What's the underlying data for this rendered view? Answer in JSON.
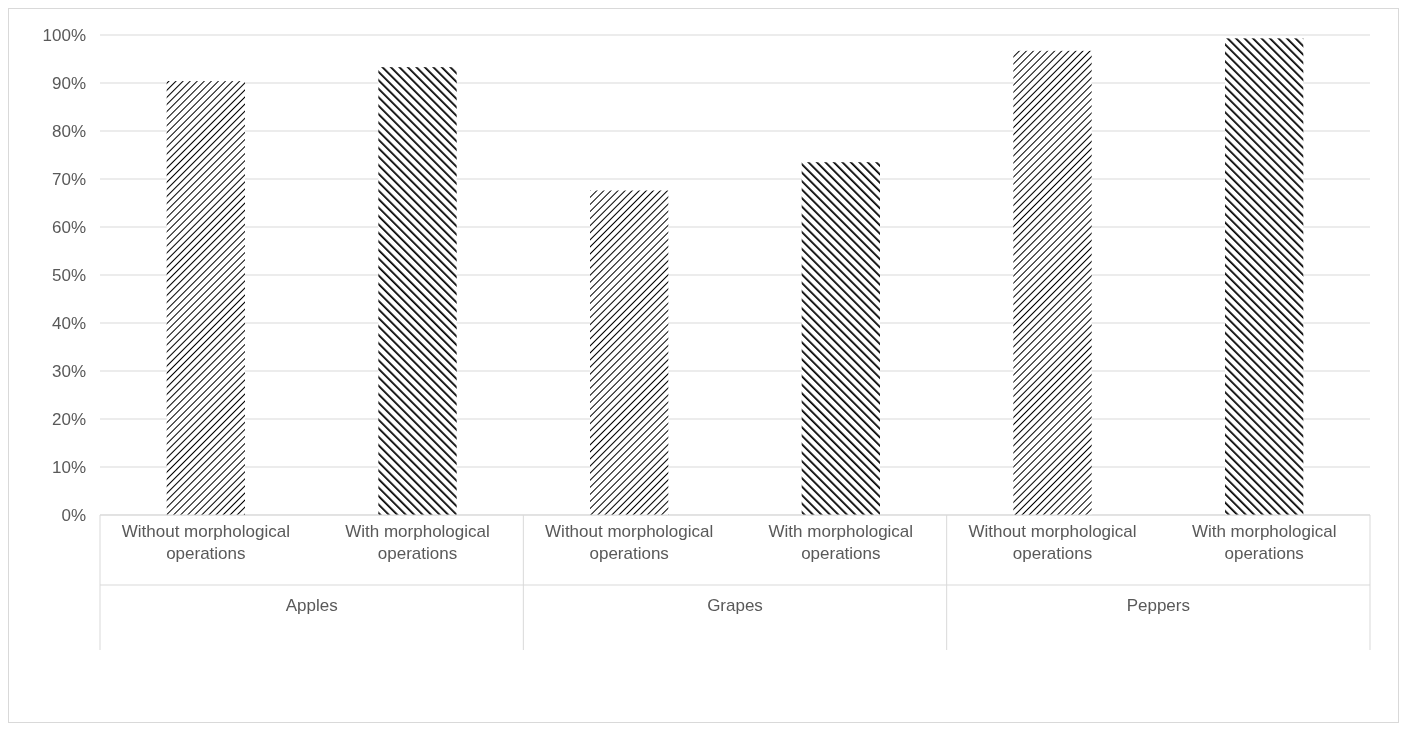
{
  "chart_data": {
    "type": "bar",
    "categories": [
      "Apples",
      "Grapes",
      "Peppers"
    ],
    "series": [
      {
        "name": "Without morphological operations",
        "color": "#000000",
        "values": [
          90.4,
          67.6,
          96.7
        ]
      },
      {
        "name": "With morphological operations",
        "color": "#000000",
        "values": [
          93.3,
          73.5,
          99.3
        ]
      }
    ],
    "ylim": [
      0,
      100
    ],
    "yticks": [
      {
        "value": 0,
        "label": "0%"
      },
      {
        "value": 10,
        "label": "10%"
      },
      {
        "value": 20,
        "label": "20%"
      },
      {
        "value": 30,
        "label": "30%"
      },
      {
        "value": 40,
        "label": "40%"
      },
      {
        "value": 50,
        "label": "50%"
      },
      {
        "value": 60,
        "label": "60%"
      },
      {
        "value": 70,
        "label": "70%"
      },
      {
        "value": 80,
        "label": "80%"
      },
      {
        "value": 90,
        "label": "90%"
      },
      {
        "value": 100,
        "label": "100%"
      }
    ],
    "grid": "y"
  }
}
